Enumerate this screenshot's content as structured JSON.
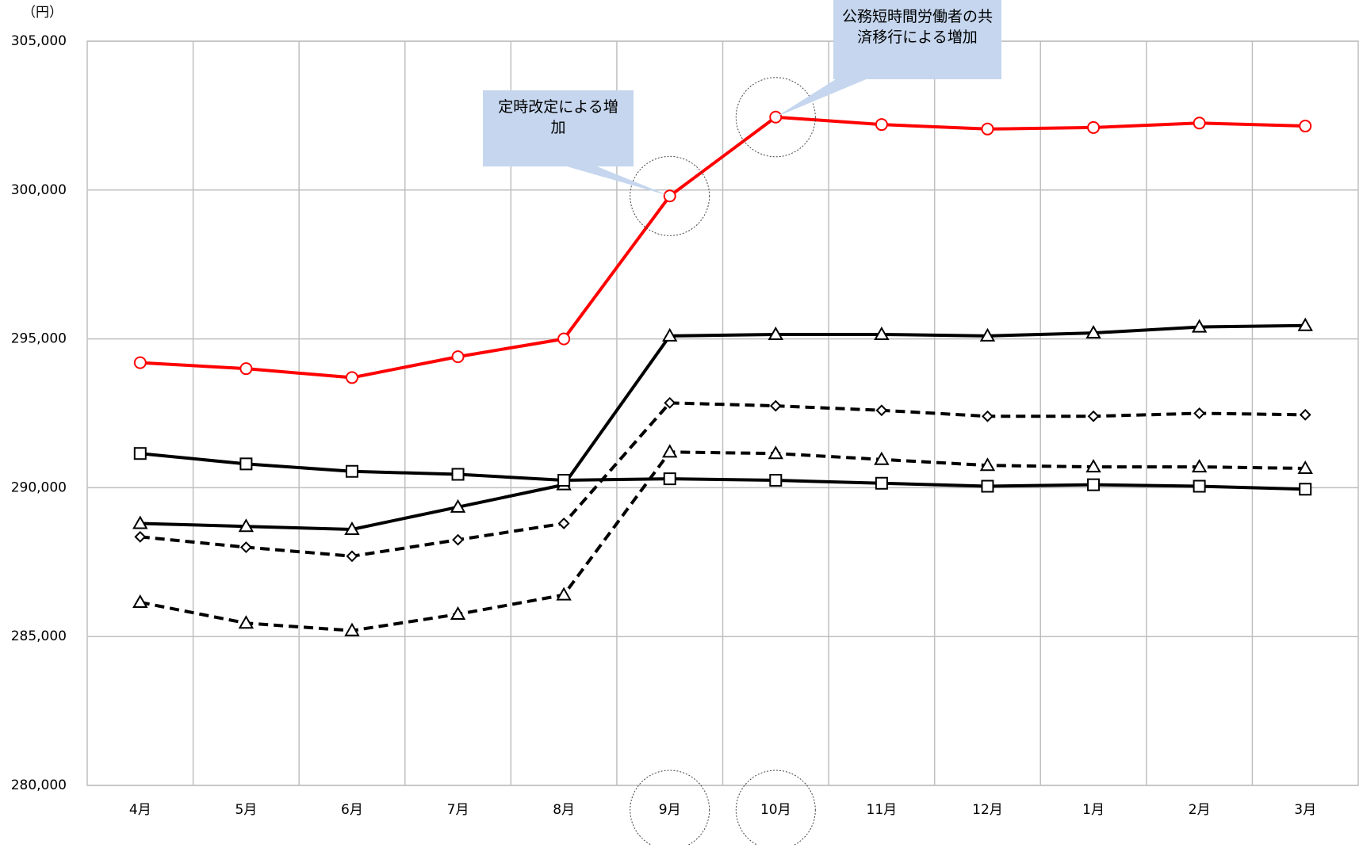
{
  "chart_data": {
    "type": "line",
    "y_unit": "（円）",
    "categories": [
      "4月",
      "5月",
      "6月",
      "7月",
      "8月",
      "9月",
      "10月",
      "11月",
      "12月",
      "1月",
      "2月",
      "3月"
    ],
    "series": [
      {
        "color": "#ff0000",
        "marker": "circle",
        "dashed": false,
        "values": [
          294200,
          294000,
          293700,
          294400,
          295000,
          299800,
          302450,
          302200,
          302050,
          302100,
          302250,
          302150
        ]
      },
      {
        "color": "#000000",
        "marker": "triangle",
        "dashed": false,
        "values": [
          288800,
          288700,
          288600,
          289350,
          290100,
          295100,
          295150,
          295150,
          295100,
          295200,
          295400,
          295450
        ]
      },
      {
        "color": "#000000",
        "marker": "diamond",
        "dashed": true,
        "values": [
          288350,
          288000,
          287700,
          288250,
          288800,
          292850,
          292750,
          292600,
          292400,
          292400,
          292500,
          292450
        ]
      },
      {
        "color": "#000000",
        "marker": "triangle",
        "dashed": true,
        "values": [
          286150,
          285450,
          285200,
          285750,
          286400,
          291200,
          291150,
          290950,
          290750,
          290700,
          290700,
          290650
        ]
      },
      {
        "color": "#000000",
        "marker": "square",
        "dashed": false,
        "values": [
          291150,
          290800,
          290550,
          290450,
          290250,
          290300,
          290250,
          290150,
          290050,
          290100,
          290050,
          289950
        ]
      }
    ],
    "ylim": [
      280000,
      305000
    ],
    "yticks": [
      {
        "value": 280000,
        "label": "280,000"
      },
      {
        "value": 285000,
        "label": "285,000"
      },
      {
        "value": 290000,
        "label": "290,000"
      },
      {
        "value": 295000,
        "label": "295,000"
      },
      {
        "value": 300000,
        "label": "300,000"
      },
      {
        "value": 305000,
        "label": "305,000"
      }
    ],
    "grid": true,
    "annotations": [
      {
        "text": "定時改定による増加",
        "category_index": 5,
        "series_index": 0
      },
      {
        "text": "公務短時間労働者の共済移行による増加",
        "category_index": 6,
        "series_index": 0
      }
    ]
  }
}
